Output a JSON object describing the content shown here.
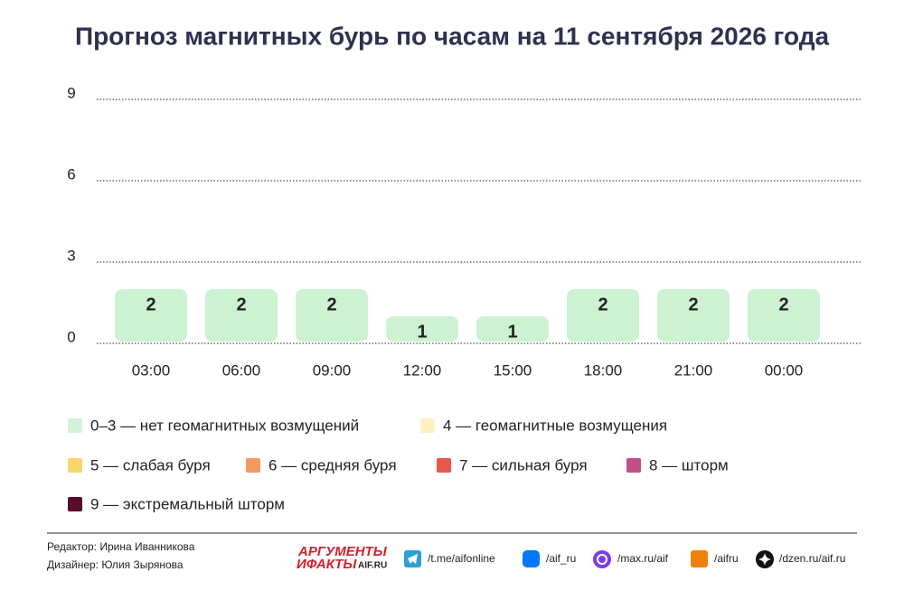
{
  "chart_data": {
    "type": "bar",
    "title": "Прогноз магнитных бурь по часам на 11 сентября 2026 года",
    "categories": [
      "03:00",
      "06:00",
      "09:00",
      "12:00",
      "15:00",
      "18:00",
      "21:00",
      "00:00"
    ],
    "values": [
      2,
      2,
      2,
      1,
      1,
      2,
      2,
      2
    ],
    "color": "#ccf2d2",
    "ylim": [
      0,
      9
    ],
    "yticks": [
      0,
      3,
      6,
      9
    ],
    "grid": true,
    "legend": [
      {
        "name": "0–3 — нет геомагнитных возмущений",
        "color": "#d2f3d6"
      },
      {
        "name": "4 — геомагнитные возмущения",
        "color": "#fdf0c2"
      },
      {
        "name": "5 — слабая буря",
        "color": "#fad66b"
      },
      {
        "name": "6 — средняя буря",
        "color": "#f5995f"
      },
      {
        "name": "7 — сильная буря",
        "color": "#e9584d"
      },
      {
        "name": "8 — шторм",
        "color": "#c44d8a"
      },
      {
        "name": "9 — экстремальный шторм",
        "color": "#5a0a2a"
      }
    ]
  },
  "footer": {
    "editor": "Редактор: Ирина Иванникова",
    "designer": "Дизайнер: Юлия Зырянова",
    "logo_top": "АРГУМЕНТЫ",
    "logo_bottom": "ИФАКТЫ",
    "logo_site": "AIF.RU",
    "links": [
      "/t.me/aifonline",
      "/aif_ru",
      "/max.ru/aif",
      "/aifru",
      "/dzen.ru/aif.ru"
    ]
  }
}
